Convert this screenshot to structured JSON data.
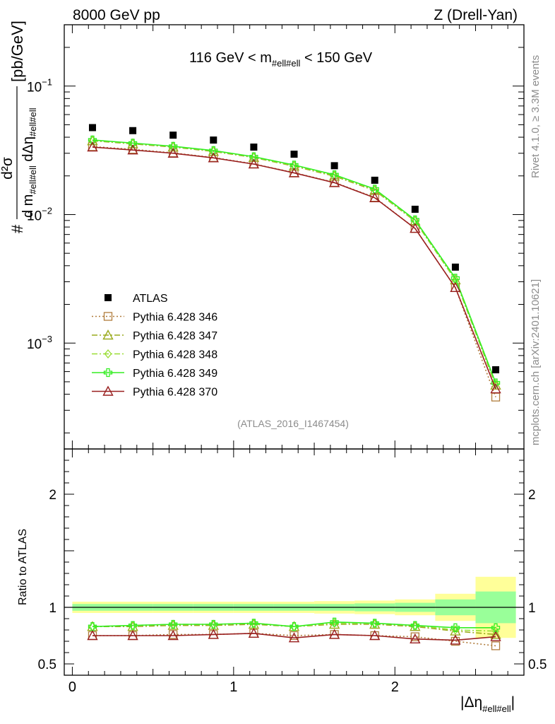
{
  "header": {
    "energy_label": "8000 GeV pp",
    "process_label": "Z (Drell-Yan)"
  },
  "side_text": {
    "rivet": "Rivet 4.1.0, ≥ 3.3M events",
    "mcplots": "mcplots.cern.ch [arXiv:2401.10621]"
  },
  "chart_data": {
    "type": "scatter",
    "title": "116 GeV < m#ell#ell < 150 GeV",
    "title_parts": {
      "pre": "116 GeV < m",
      "sub": "#ell#ell",
      "post": " < 150 GeV"
    },
    "analysis_id": "(ATLAS_2016_I1467454)",
    "xlabel": "|Δη#ell#ell|",
    "xlabel_parts": {
      "main": "|Δη",
      "sub": "#ell#ell",
      "close": "|"
    },
    "ylabel": "d²σ / d m#ell#ell dΔη#ell#ell [pb/GeV]",
    "ylabel_parts": {
      "hash": "#",
      "num": "d²σ",
      "den_d": "d m",
      "den_sub": "#ell#ell",
      "den_deta": " dΔη",
      "den_sub2": "#ell#ell",
      "unit": "[pb/GeV]"
    },
    "ratio_ylabel": "Ratio to ATLAS",
    "xlim": [
      -0.05,
      2.8
    ],
    "ylim": [
      0.00015,
      0.3
    ],
    "ratio_ylim": [
      0.4,
      2.4
    ],
    "yscale": "log",
    "x_ticks": [
      {
        "v": 0,
        "l": "0"
      },
      {
        "v": 1,
        "l": "1"
      },
      {
        "v": 2,
        "l": "2"
      }
    ],
    "y_ticks": [
      {
        "v": 0.1,
        "base": "10",
        "exp": "−1"
      },
      {
        "v": 0.01,
        "base": "10",
        "exp": "−2"
      },
      {
        "v": 0.001,
        "base": "10",
        "exp": "−3"
      }
    ],
    "ratio_ticks": [
      {
        "v": 0.5,
        "l": "0.5"
      },
      {
        "v": 1,
        "l": "1"
      },
      {
        "v": 2,
        "l": "2"
      }
    ],
    "bin_edges": [
      0,
      0.25,
      0.5,
      0.75,
      1.0,
      1.25,
      1.5,
      1.75,
      2.0,
      2.25,
      2.5,
      2.75
    ],
    "x": [
      0.125,
      0.375,
      0.625,
      0.875,
      1.125,
      1.375,
      1.625,
      1.875,
      2.125,
      2.375,
      2.625
    ],
    "data": {
      "name": "ATLAS",
      "color": "#000000",
      "values": [
        0.0475,
        0.045,
        0.0415,
        0.038,
        0.0335,
        0.0295,
        0.024,
        0.0185,
        0.011,
        0.0039,
        0.00062
      ],
      "ratio_band_inner": [
        0.03,
        0.03,
        0.03,
        0.03,
        0.03,
        0.03,
        0.03,
        0.035,
        0.04,
        0.07,
        0.14
      ],
      "ratio_band_outer": [
        0.05,
        0.05,
        0.05,
        0.05,
        0.05,
        0.05,
        0.055,
        0.06,
        0.07,
        0.12,
        0.27
      ]
    },
    "series": [
      {
        "name": "Pythia 6.428 346",
        "color": "#b07c3c",
        "marker": "square",
        "dash": "2,3",
        "values": [
          0.0338,
          0.0322,
          0.0302,
          0.0278,
          0.0248,
          0.0212,
          0.0178,
          0.0136,
          0.0078,
          0.0027,
          0.00038
        ],
        "ratio": [
          0.75,
          0.75,
          0.76,
          0.76,
          0.77,
          0.75,
          0.76,
          0.75,
          0.74,
          0.7,
          0.66
        ]
      },
      {
        "name": "Pythia 6.428 347",
        "color": "#9aaa1c",
        "marker": "triangle",
        "dash": "8,3,2,3",
        "values": [
          0.0375,
          0.0355,
          0.0335,
          0.031,
          0.0278,
          0.0238,
          0.0199,
          0.0154,
          0.0089,
          0.0031,
          0.00047
        ],
        "ratio": [
          0.83,
          0.83,
          0.84,
          0.84,
          0.85,
          0.83,
          0.85,
          0.85,
          0.83,
          0.79,
          0.76
        ]
      },
      {
        "name": "Pythia 6.428 348",
        "color": "#99dd33",
        "marker": "diamond",
        "dash": "8,3,2,3",
        "values": [
          0.0378,
          0.0358,
          0.0338,
          0.0313,
          0.028,
          0.0241,
          0.0202,
          0.0156,
          0.009,
          0.0031,
          0.00048
        ],
        "ratio": [
          0.83,
          0.84,
          0.85,
          0.85,
          0.86,
          0.83,
          0.86,
          0.86,
          0.84,
          0.8,
          0.79
        ]
      },
      {
        "name": "Pythia 6.428 349",
        "color": "#33ee22",
        "marker": "cross",
        "dash": "",
        "values": [
          0.0381,
          0.036,
          0.034,
          0.0315,
          0.0282,
          0.0243,
          0.0204,
          0.0158,
          0.0091,
          0.0032,
          0.00049
        ],
        "ratio": [
          0.83,
          0.84,
          0.85,
          0.85,
          0.86,
          0.83,
          0.87,
          0.86,
          0.84,
          0.82,
          0.82
        ]
      },
      {
        "name": "Pythia 6.428 370",
        "color": "#991f1f",
        "marker": "triangle",
        "dash": "",
        "values": [
          0.0335,
          0.0318,
          0.03,
          0.0276,
          0.0247,
          0.0211,
          0.0177,
          0.0135,
          0.0078,
          0.0027,
          0.00044
        ],
        "ratio": [
          0.75,
          0.75,
          0.75,
          0.76,
          0.77,
          0.73,
          0.76,
          0.75,
          0.72,
          0.71,
          0.74
        ]
      }
    ]
  }
}
